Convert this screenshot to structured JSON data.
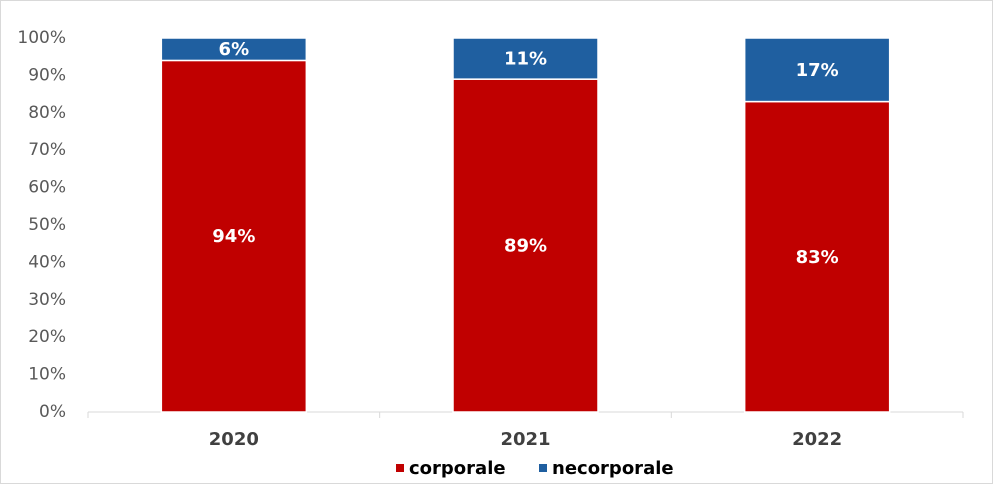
{
  "chart_data": {
    "type": "bar",
    "stacked": true,
    "categories": [
      "2020",
      "2021",
      "2022"
    ],
    "series": [
      {
        "name": "corporale",
        "values": [
          94,
          89,
          83
        ],
        "labels": [
          "94%",
          "89%",
          "83%"
        ],
        "color": "#c00000"
      },
      {
        "name": "necorporale",
        "values": [
          6,
          11,
          17
        ],
        "labels": [
          "6%",
          "11%",
          "17%"
        ],
        "color": "#1f5fa0"
      }
    ],
    "title": "",
    "xlabel": "",
    "ylabel": "",
    "ylim": [
      0,
      100
    ],
    "yticks": [
      "0%",
      "10%",
      "20%",
      "30%",
      "40%",
      "50%",
      "60%",
      "70%",
      "80%",
      "90%",
      "100%"
    ],
    "grid": false,
    "legend_position": "bottom"
  }
}
